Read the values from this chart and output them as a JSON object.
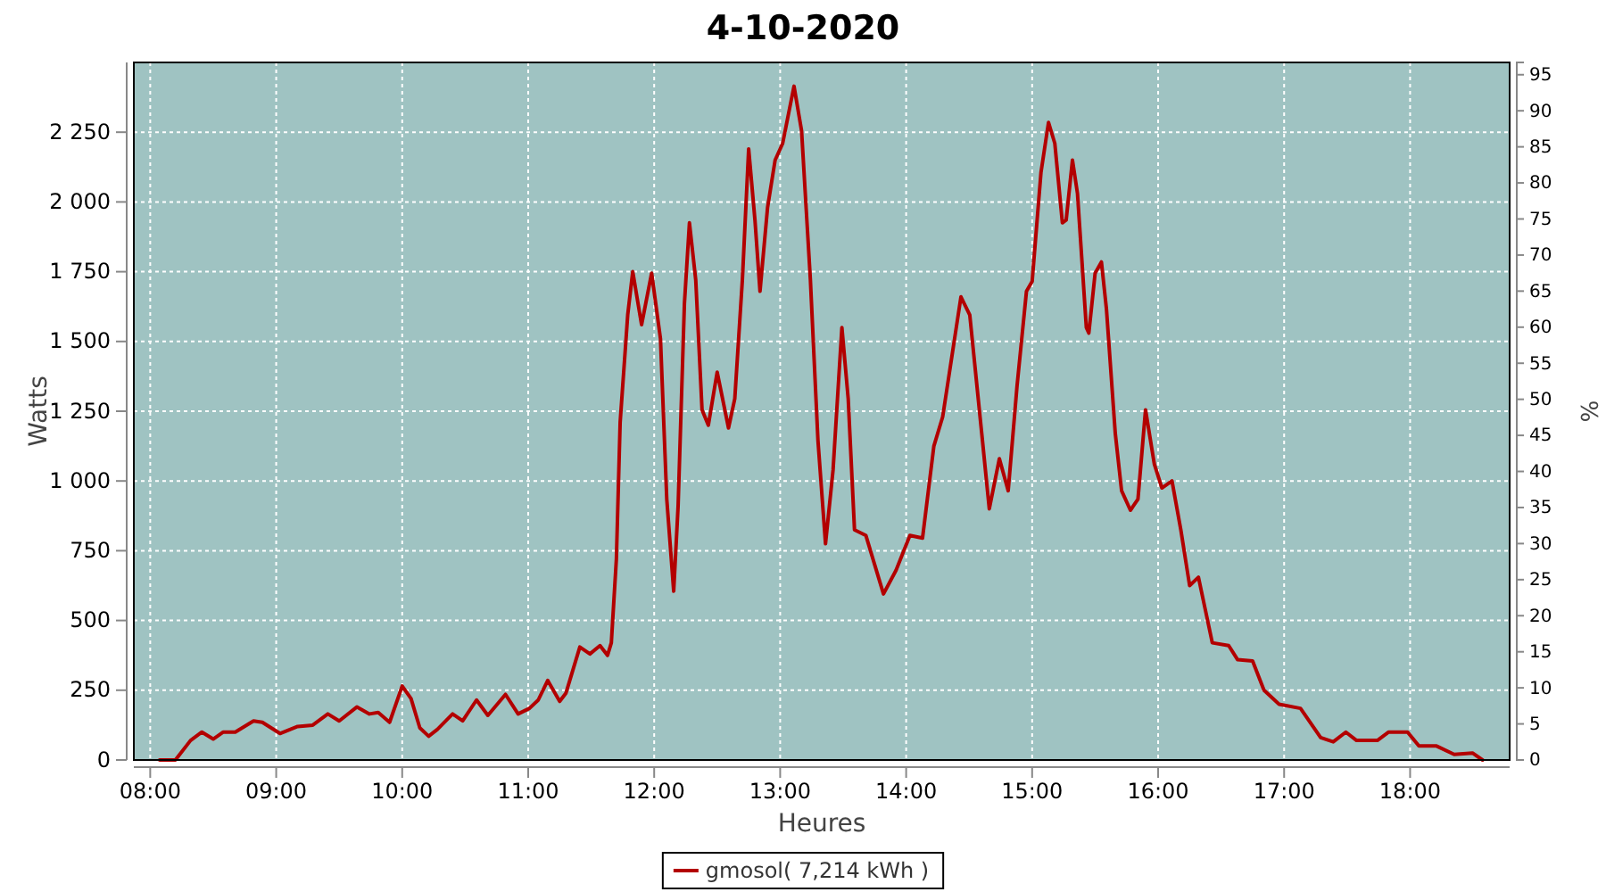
{
  "chart_data": {
    "type": "line",
    "title": "4-10-2020",
    "xlabel": "Heures",
    "ylabel": "Watts",
    "y2label": "%",
    "xlim": [
      7.87,
      18.79
    ],
    "xticks": [
      {
        "value": 8,
        "label": "08:00"
      },
      {
        "value": 9,
        "label": "09:00"
      },
      {
        "value": 10,
        "label": "10:00"
      },
      {
        "value": 11,
        "label": "11:00"
      },
      {
        "value": 12,
        "label": "12:00"
      },
      {
        "value": 13,
        "label": "13:00"
      },
      {
        "value": 14,
        "label": "14:00"
      },
      {
        "value": 15,
        "label": "15:00"
      },
      {
        "value": 16,
        "label": "16:00"
      },
      {
        "value": 17,
        "label": "17:00"
      },
      {
        "value": 18,
        "label": "18:00"
      }
    ],
    "ylim": [
      0,
      2500
    ],
    "yticks": [
      0,
      250,
      500,
      750,
      {
        "value": 1000,
        "label": "1 000"
      },
      {
        "value": 1250,
        "label": "1 250"
      },
      {
        "value": 1500,
        "label": "1 500"
      },
      {
        "value": 1750,
        "label": "1 750"
      },
      {
        "value": 2000,
        "label": "2 000"
      },
      {
        "value": 2250,
        "label": "2 250"
      }
    ],
    "y2lim": [
      0,
      96.7
    ],
    "y2ticks": [
      0,
      5,
      10,
      15,
      20,
      25,
      30,
      35,
      40,
      45,
      50,
      55,
      60,
      65,
      70,
      75,
      80,
      85,
      90,
      95
    ],
    "grid": true,
    "legend": "bottom",
    "marker": "none",
    "line_style": "solid",
    "series": [
      {
        "name": "gmosol( 7,214 kWh )",
        "color": "#b30000",
        "x": [
          8.075,
          8.2,
          8.32,
          8.41,
          8.5,
          8.58,
          8.675,
          8.82,
          8.89,
          9.03,
          9.17,
          9.29,
          9.41,
          9.5,
          9.64,
          9.74,
          9.81,
          9.9,
          10.0,
          10.07,
          10.14,
          10.21,
          10.28,
          10.4,
          10.48,
          10.59,
          10.68,
          10.82,
          10.92,
          11.01,
          11.08,
          11.155,
          11.25,
          11.3,
          11.41,
          11.49,
          11.57,
          11.63,
          11.66,
          11.7,
          11.73,
          11.79,
          11.83,
          11.9,
          11.98,
          12.05,
          12.1,
          12.155,
          12.19,
          12.24,
          12.28,
          12.33,
          12.38,
          12.43,
          12.5,
          12.59,
          12.64,
          12.7,
          12.75,
          12.8,
          12.84,
          12.9,
          12.96,
          13.02,
          13.11,
          13.17,
          13.24,
          13.3,
          13.36,
          13.42,
          13.49,
          13.54,
          13.59,
          13.68,
          13.82,
          13.92,
          14.03,
          14.13,
          14.22,
          14.29,
          14.435,
          14.505,
          14.6,
          14.66,
          14.74,
          14.81,
          14.88,
          14.955,
          15.0,
          15.07,
          15.13,
          15.18,
          15.24,
          15.27,
          15.32,
          15.36,
          15.43,
          15.45,
          15.5,
          15.55,
          15.59,
          15.66,
          15.71,
          15.78,
          15.84,
          15.9,
          15.97,
          16.03,
          16.11,
          16.18,
          16.25,
          16.32,
          16.43,
          16.56,
          16.63,
          16.75,
          16.84,
          16.96,
          17.13,
          17.29,
          17.39,
          17.49,
          17.575,
          17.74,
          17.83,
          17.98,
          18.07,
          18.21,
          18.35,
          18.495,
          18.575
        ],
        "values": [
          0,
          0,
          70,
          100,
          75,
          100,
          100,
          140,
          135,
          95,
          120,
          125,
          165,
          140,
          190,
          165,
          170,
          135,
          265,
          220,
          115,
          85,
          110,
          165,
          140,
          215,
          160,
          235,
          165,
          185,
          215,
          285,
          210,
          240,
          405,
          380,
          410,
          375,
          420,
          720,
          1210,
          1595,
          1750,
          1560,
          1745,
          1510,
          935,
          605,
          910,
          1635,
          1925,
          1720,
          1255,
          1200,
          1390,
          1190,
          1295,
          1720,
          2190,
          1935,
          1680,
          1980,
          2150,
          2210,
          2415,
          2255,
          1720,
          1145,
          775,
          1040,
          1550,
          1295,
          825,
          805,
          595,
          680,
          805,
          795,
          1125,
          1230,
          1660,
          1595,
          1170,
          900,
          1080,
          965,
          1340,
          1680,
          1715,
          2105,
          2285,
          2210,
          1925,
          1935,
          2150,
          2030,
          1550,
          1530,
          1745,
          1785,
          1615,
          1170,
          965,
          895,
          935,
          1255,
          1060,
          975,
          1000,
          825,
          625,
          655,
          420,
          410,
          360,
          355,
          250,
          200,
          185,
          80,
          65,
          100,
          70,
          70,
          100,
          100,
          50,
          50,
          20,
          25,
          0
        ]
      }
    ]
  }
}
